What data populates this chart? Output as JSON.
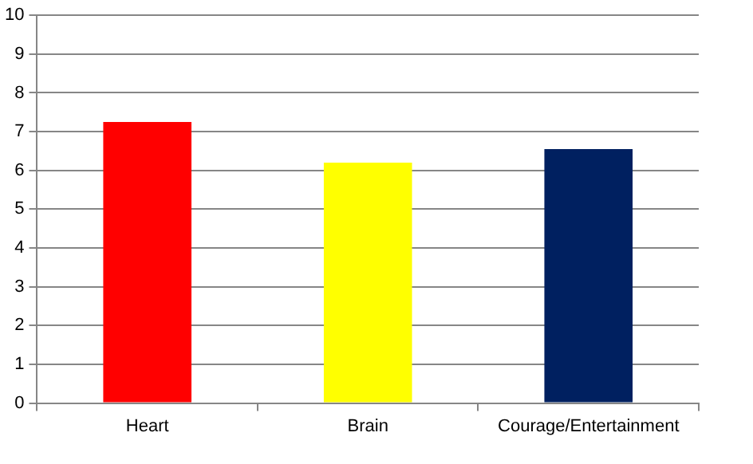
{
  "chart_data": {
    "type": "bar",
    "categories": [
      "Heart",
      "Brain",
      "Courage/Entertainment"
    ],
    "values": [
      7.25,
      6.2,
      6.55
    ],
    "colors": [
      "#ff0000",
      "#ffff00",
      "#002060"
    ],
    "ylim": [
      0,
      10
    ],
    "yticks": [
      0,
      1,
      2,
      3,
      4,
      5,
      6,
      7,
      8,
      9,
      10
    ],
    "grid": "y"
  }
}
